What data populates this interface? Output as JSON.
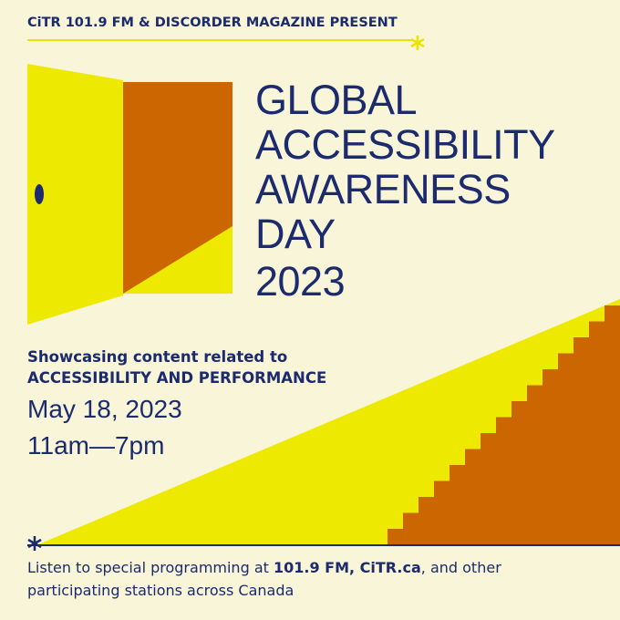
{
  "header": {
    "presenter": "CiTR 101.9 FM & DISCORDER MAGAZINE PRESENT"
  },
  "title": {
    "lines": [
      "GLOBAL",
      "ACCESSIBILITY",
      "AWARENESS",
      "DAY"
    ],
    "year": "2023"
  },
  "details": {
    "intro": "Showcasing content related to",
    "theme": "ACCESSIBILITY AND PERFORMANCE",
    "date": "May 18, 2023",
    "time": "11am—7pm"
  },
  "footer": {
    "before": "Listen to special programming at ",
    "highlight": "101.9 FM, CiTR.ca",
    "after": ", and other participating stations across Canada"
  }
}
